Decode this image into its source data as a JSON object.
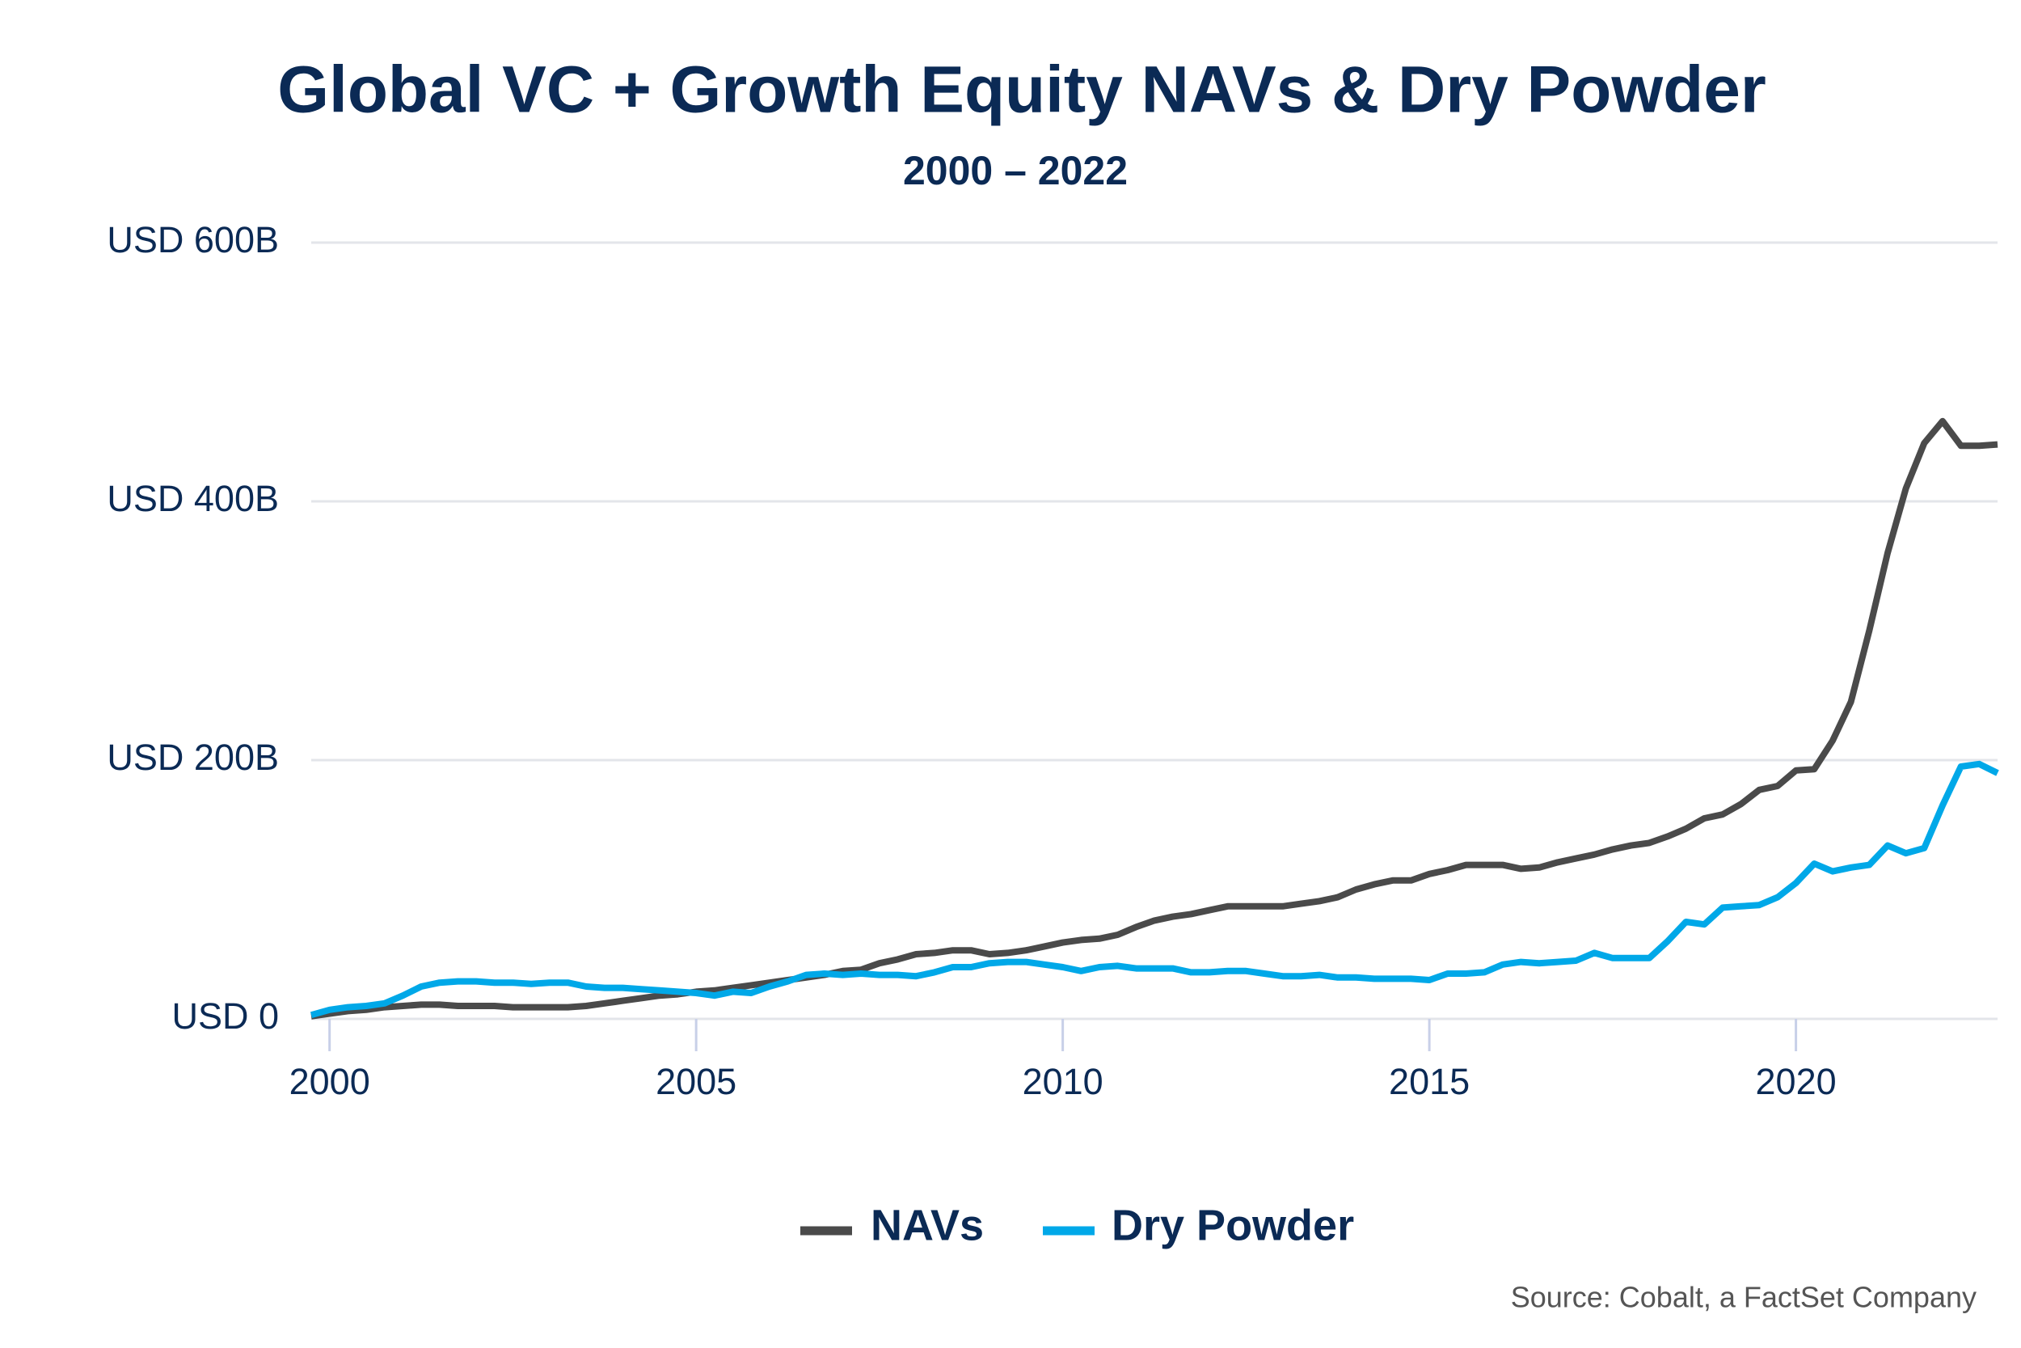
{
  "chart_data": {
    "type": "line",
    "title": "Global VC + Growth Equity NAVs & Dry Powder",
    "subtitle": "2000 – 2022",
    "source": "Source: Cobalt, a FactSet Company",
    "x": [
      1999.75,
      2000,
      2000.25,
      2000.5,
      2000.75,
      2001,
      2001.25,
      2001.5,
      2001.75,
      2002,
      2002.25,
      2002.5,
      2002.75,
      2003,
      2003.25,
      2003.5,
      2003.75,
      2004,
      2004.25,
      2004.5,
      2004.75,
      2005,
      2005.25,
      2005.5,
      2005.75,
      2006,
      2006.25,
      2006.5,
      2006.75,
      2007,
      2007.25,
      2007.5,
      2007.75,
      2008,
      2008.25,
      2008.5,
      2008.75,
      2009,
      2009.25,
      2009.5,
      2009.75,
      2010,
      2010.25,
      2010.5,
      2010.75,
      2011,
      2011.25,
      2011.5,
      2011.75,
      2012,
      2012.25,
      2012.5,
      2012.75,
      2013,
      2013.25,
      2013.5,
      2013.75,
      2014,
      2014.25,
      2014.5,
      2014.75,
      2015,
      2015.25,
      2015.5,
      2015.75,
      2016,
      2016.25,
      2016.5,
      2016.75,
      2017,
      2017.25,
      2017.5,
      2017.75,
      2018,
      2018.25,
      2018.5,
      2018.75,
      2019,
      2019.25,
      2019.5,
      2019.75,
      2020,
      2020.25,
      2020.5,
      2020.75,
      2021,
      2021.25,
      2021.5,
      2021.75,
      2022,
      2022.25,
      2022.5,
      2022.75
    ],
    "series": [
      {
        "name": "NAVs",
        "color": "#4a4a4a",
        "values": [
          2,
          4,
          6,
          7,
          9,
          10,
          11,
          11,
          10,
          10,
          10,
          9,
          9,
          9,
          9,
          10,
          12,
          14,
          16,
          18,
          19,
          21,
          22,
          24,
          26,
          28,
          30,
          32,
          34,
          37,
          38,
          43,
          46,
          50,
          51,
          53,
          53,
          50,
          51,
          53,
          56,
          59,
          61,
          62,
          65,
          71,
          76,
          79,
          81,
          84,
          87,
          87,
          87,
          87,
          89,
          91,
          94,
          100,
          104,
          107,
          107,
          112,
          115,
          119,
          119,
          119,
          116,
          117,
          121,
          124,
          127,
          131,
          134,
          136,
          141,
          147,
          155,
          158,
          166,
          177,
          180,
          192,
          193,
          215,
          245,
          300,
          360,
          410,
          445,
          462,
          443,
          443,
          444
        ]
      },
      {
        "name": "Dry Powder",
        "color": "#00a8e8",
        "values": [
          3,
          7,
          9,
          10,
          12,
          18,
          25,
          28,
          29,
          29,
          28,
          28,
          27,
          28,
          28,
          25,
          24,
          24,
          23,
          22,
          21,
          20,
          18,
          21,
          20,
          25,
          29,
          34,
          35,
          34,
          35,
          34,
          34,
          33,
          36,
          40,
          40,
          43,
          44,
          44,
          42,
          40,
          37,
          40,
          41,
          39,
          39,
          39,
          36,
          36,
          37,
          37,
          35,
          33,
          33,
          34,
          32,
          32,
          31,
          31,
          31,
          30,
          35,
          35,
          36,
          42,
          44,
          43,
          44,
          45,
          51,
          47,
          47,
          47,
          60,
          75,
          73,
          86,
          87,
          88,
          94,
          105,
          120,
          114,
          117,
          119,
          134,
          128,
          132,
          165,
          195,
          197,
          190
        ]
      }
    ],
    "xlim": [
      1999.75,
      2022.75
    ],
    "xticks": [
      2000,
      2005,
      2010,
      2015,
      2020
    ],
    "ylim": [
      0,
      600
    ],
    "yticks": [
      {
        "value": 0,
        "label": "USD 0"
      },
      {
        "value": 200,
        "label": "USD 200B"
      },
      {
        "value": 400,
        "label": "USD 400B"
      },
      {
        "value": 600,
        "label": "USD 600B"
      }
    ],
    "grid": true,
    "legend": "bottom"
  }
}
